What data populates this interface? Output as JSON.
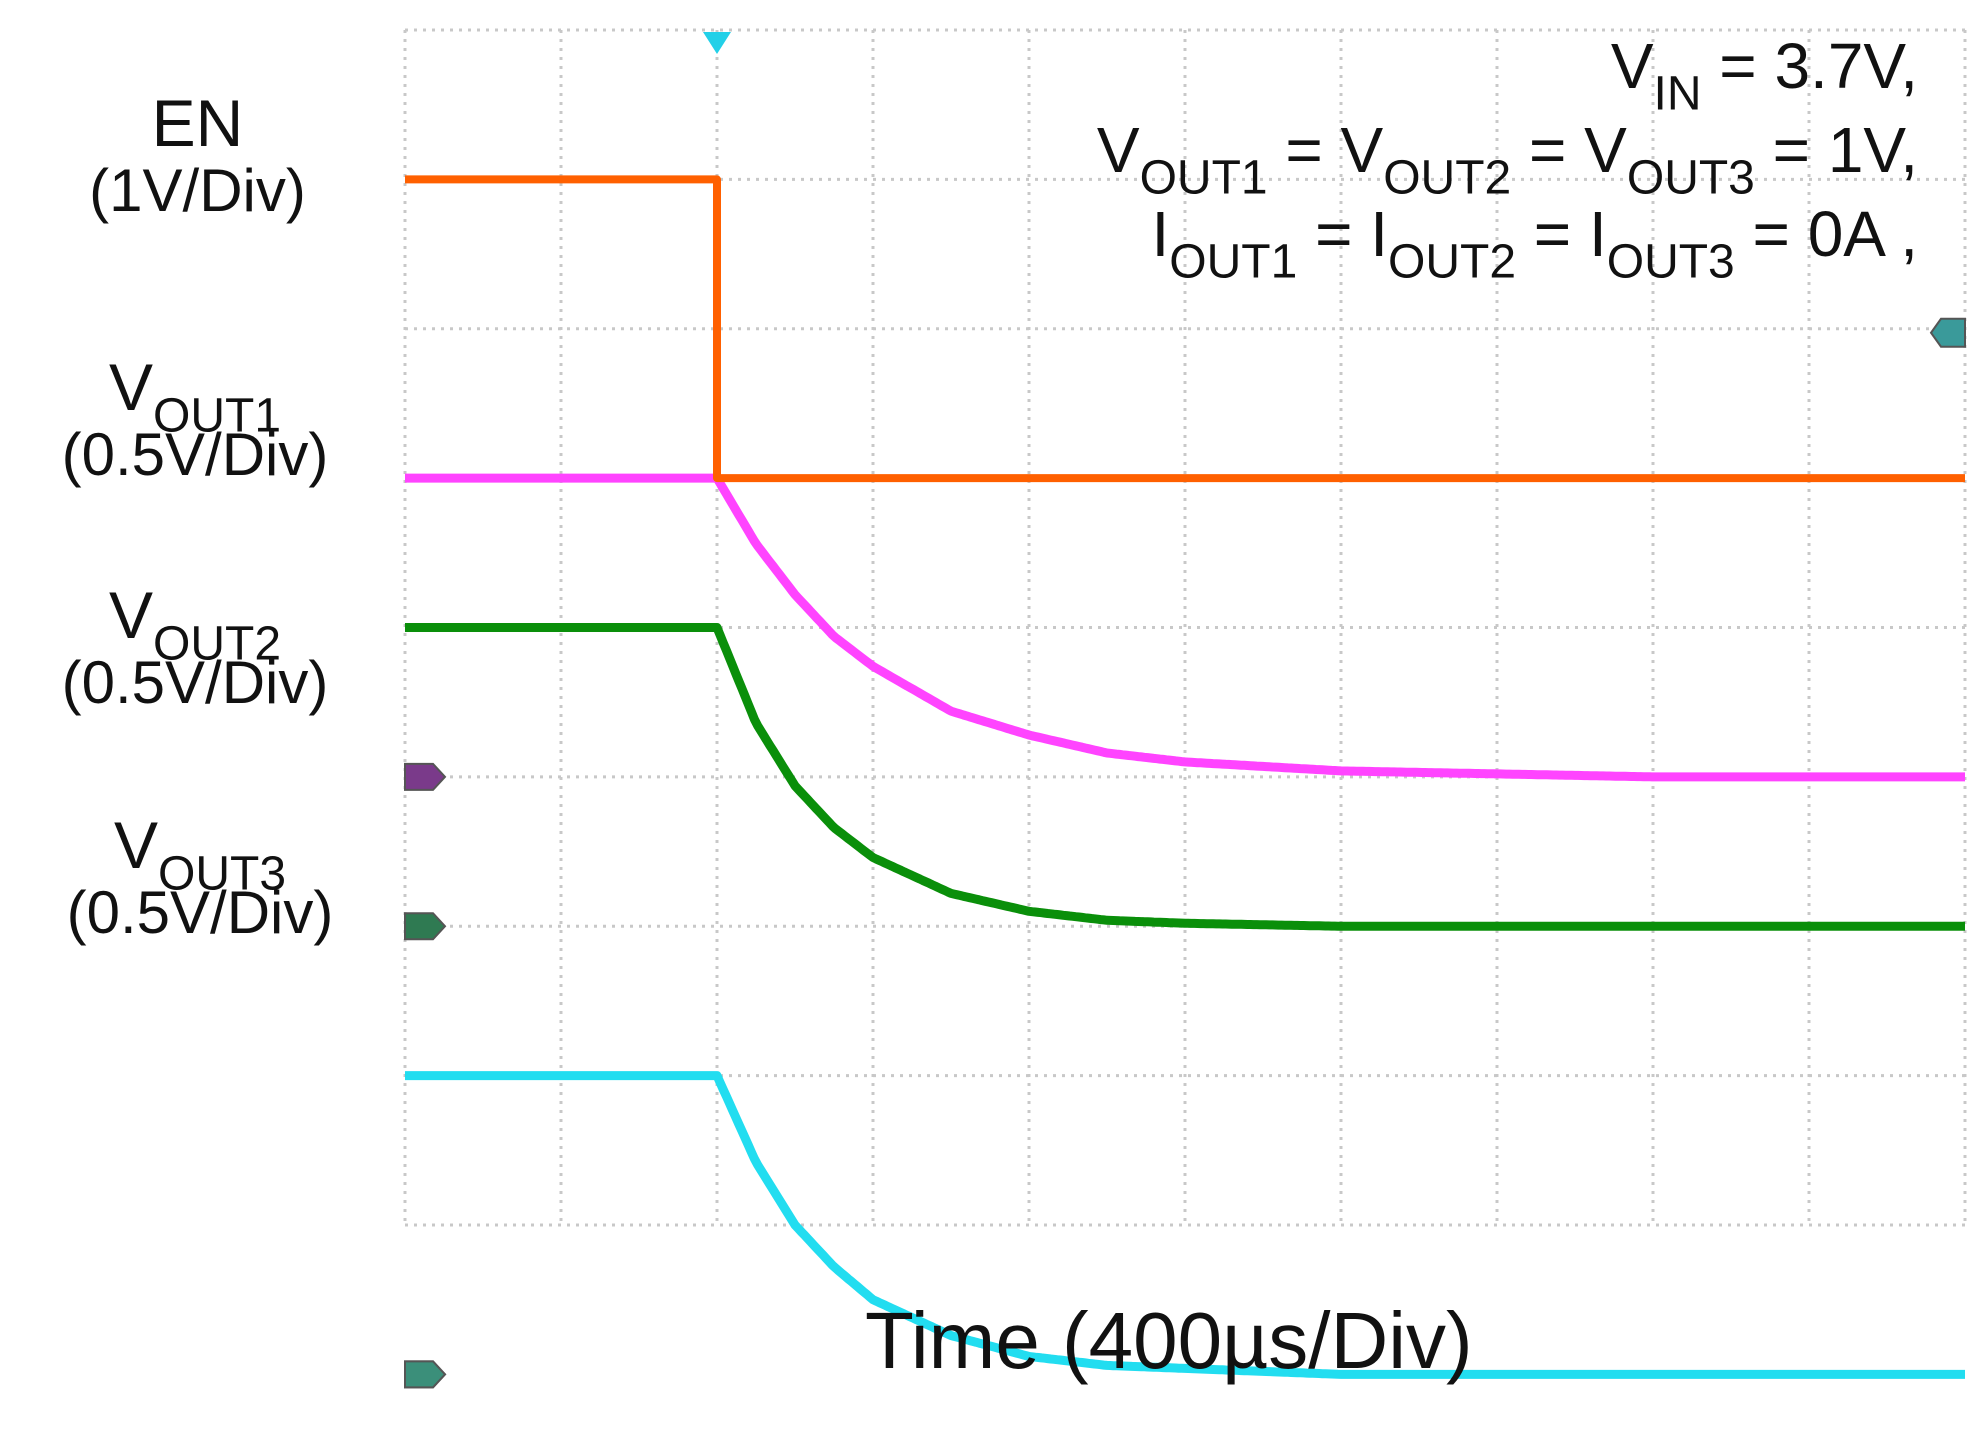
{
  "chart_data": {
    "type": "line",
    "title": "",
    "xlabel": "Time (400µs/Div)",
    "x_unit": "µs",
    "x_per_div": 400,
    "x_divisions": 10,
    "xlim": [
      -800,
      3200
    ],
    "y_divisions": 8,
    "trigger_time": 0,
    "series": [
      {
        "name": "EN",
        "label": "EN",
        "scale_text": "(1V/Div)",
        "volts_per_div": 1,
        "color": "#ff6000",
        "x": [
          -800,
          0,
          0,
          3200
        ],
        "y": [
          2.0,
          2.0,
          0.0,
          0.0
        ]
      },
      {
        "name": "VOUT1",
        "label_main": "V",
        "label_sub": "OUT1",
        "scale_text": "(0.5V/Div)",
        "volts_per_div": 0.5,
        "color": "#ff44ff",
        "x": [
          -800,
          0,
          100,
          200,
          300,
          400,
          600,
          800,
          1000,
          1200,
          1600,
          2000,
          2400,
          2800,
          3200
        ],
        "y": [
          1.0,
          1.0,
          0.78,
          0.61,
          0.47,
          0.37,
          0.22,
          0.14,
          0.08,
          0.05,
          0.02,
          0.01,
          0.0,
          0.0,
          0.0
        ]
      },
      {
        "name": "VOUT2",
        "label_main": "V",
        "label_sub": "OUT2",
        "scale_text": "(0.5V/Div)",
        "volts_per_div": 0.5,
        "color": "#0a8f0a",
        "x": [
          -800,
          0,
          100,
          200,
          300,
          400,
          600,
          800,
          1000,
          1200,
          1600,
          2000,
          2400,
          2800,
          3200
        ],
        "y": [
          1.0,
          1.0,
          0.68,
          0.47,
          0.33,
          0.23,
          0.11,
          0.05,
          0.02,
          0.01,
          0.0,
          0.0,
          0.0,
          0.0,
          0.0
        ]
      },
      {
        "name": "VOUT3",
        "label_main": "V",
        "label_sub": "OUT3",
        "scale_text": "(0.5V/Div)",
        "volts_per_div": 0.5,
        "color": "#22ddf0",
        "x": [
          -800,
          0,
          100,
          200,
          300,
          400,
          600,
          800,
          1000,
          1200,
          1600,
          2000,
          2400,
          2800,
          3200
        ],
        "y": [
          1.0,
          1.0,
          0.71,
          0.5,
          0.36,
          0.25,
          0.13,
          0.06,
          0.03,
          0.02,
          0.0,
          0.0,
          0.0,
          0.0,
          0.0
        ]
      }
    ],
    "annotations": [
      {
        "parts": [
          {
            "t": "V"
          },
          {
            "t": "IN",
            "sub": true
          },
          {
            "t": " = 3.7V,"
          }
        ]
      },
      {
        "parts": [
          {
            "t": "V"
          },
          {
            "t": "OUT1",
            "sub": true
          },
          {
            "t": " = V"
          },
          {
            "t": "OUT2",
            "sub": true
          },
          {
            "t": " = V"
          },
          {
            "t": "OUT3",
            "sub": true
          },
          {
            "t": " = 1V,"
          }
        ]
      },
      {
        "parts": [
          {
            "t": "I"
          },
          {
            "t": "OUT1",
            "sub": true
          },
          {
            "t": " = I"
          },
          {
            "t": "OUT2",
            "sub": true
          },
          {
            "t": " = I"
          },
          {
            "t": "OUT3",
            "sub": true
          },
          {
            "t": " = 0A ,"
          }
        ]
      }
    ],
    "grid": true,
    "legend": "left"
  }
}
